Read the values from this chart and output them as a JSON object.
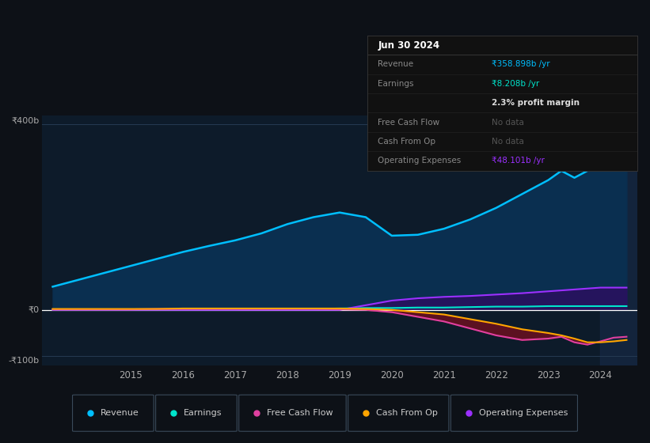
{
  "bg_color": "#0d1117",
  "plot_bg_color": "#0d1b2a",
  "grid_color": "#253a52",
  "zero_line_color": "#ffffff",
  "years": [
    2013.5,
    2014.0,
    2014.5,
    2015.0,
    2015.5,
    2016.0,
    2016.5,
    2017.0,
    2017.5,
    2018.0,
    2018.5,
    2019.0,
    2019.5,
    2020.0,
    2020.5,
    2021.0,
    2021.5,
    2022.0,
    2022.5,
    2023.0,
    2023.25,
    2023.5,
    2023.75,
    2024.0,
    2024.25,
    2024.5
  ],
  "revenue": [
    50,
    65,
    80,
    95,
    110,
    125,
    138,
    150,
    165,
    185,
    200,
    210,
    200,
    160,
    162,
    175,
    195,
    220,
    250,
    280,
    300,
    285,
    300,
    375,
    355,
    360
  ],
  "earnings": [
    1,
    1,
    1,
    1,
    1,
    1,
    1,
    1,
    2,
    2,
    2,
    3,
    4,
    4,
    5,
    5,
    6,
    7,
    7,
    8,
    8,
    8,
    8,
    8,
    8,
    8
  ],
  "free_cash_flow": [
    1,
    1,
    1,
    1,
    2,
    2,
    2,
    2,
    2,
    2,
    2,
    1,
    0,
    -5,
    -15,
    -25,
    -40,
    -55,
    -65,
    -62,
    -58,
    -70,
    -75,
    -68,
    -60,
    -58
  ],
  "cash_from_op": [
    2,
    2,
    2,
    2,
    2,
    3,
    3,
    3,
    3,
    3,
    3,
    3,
    2,
    0,
    -5,
    -10,
    -20,
    -30,
    -42,
    -50,
    -55,
    -62,
    -70,
    -70,
    -68,
    -65
  ],
  "operating_expenses": [
    0,
    0,
    0,
    0,
    0,
    0,
    0,
    0,
    0,
    0,
    0,
    0,
    10,
    20,
    25,
    28,
    30,
    33,
    36,
    40,
    42,
    44,
    46,
    48,
    48,
    48
  ],
  "highlight_x_start": 2024.0,
  "xlim_start": 2013.3,
  "xlim_end": 2024.7,
  "ylim": [
    -120,
    420
  ],
  "x_ticks": [
    2015,
    2016,
    2017,
    2018,
    2019,
    2020,
    2021,
    2022,
    2023,
    2024
  ],
  "legend_items": [
    {
      "label": "Revenue",
      "color": "#00bfff"
    },
    {
      "label": "Earnings",
      "color": "#00e5cc"
    },
    {
      "label": "Free Cash Flow",
      "color": "#e040a0"
    },
    {
      "label": "Cash From Op",
      "color": "#ffa500"
    },
    {
      "label": "Operating Expenses",
      "color": "#9b30ff"
    }
  ],
  "revenue_fill_color": "#0a2f50",
  "revenue_line_color": "#00bfff",
  "earnings_line_color": "#00e5cc",
  "fcf_line_color": "#e040a0",
  "cfop_line_color": "#ffa500",
  "opex_line_color": "#9b30ff",
  "neg_fill_color": "#6b1020",
  "opex_fill_color": "#2a1060",
  "highlight_color": "#162845",
  "tooltip_rows": [
    {
      "label": "Jun 30 2024",
      "value": "",
      "is_header": true,
      "label_color": "#ffffff",
      "value_color": "#ffffff"
    },
    {
      "label": "Revenue",
      "value": "₹358.898b /yr",
      "is_header": false,
      "label_color": "#888888",
      "value_color": "#00bfff"
    },
    {
      "label": "Earnings",
      "value": "₹8.208b /yr",
      "is_header": false,
      "label_color": "#888888",
      "value_color": "#00e5cc"
    },
    {
      "label": "",
      "value": "2.3% profit margin",
      "is_header": false,
      "label_color": "#888888",
      "value_color": "#dddddd",
      "bold_value": true
    },
    {
      "label": "Free Cash Flow",
      "value": "No data",
      "is_header": false,
      "label_color": "#888888",
      "value_color": "#555555"
    },
    {
      "label": "Cash From Op",
      "value": "No data",
      "is_header": false,
      "label_color": "#888888",
      "value_color": "#555555"
    },
    {
      "label": "Operating Expenses",
      "value": "₹48.101b /yr",
      "is_header": false,
      "label_color": "#888888",
      "value_color": "#9b30ff"
    }
  ]
}
